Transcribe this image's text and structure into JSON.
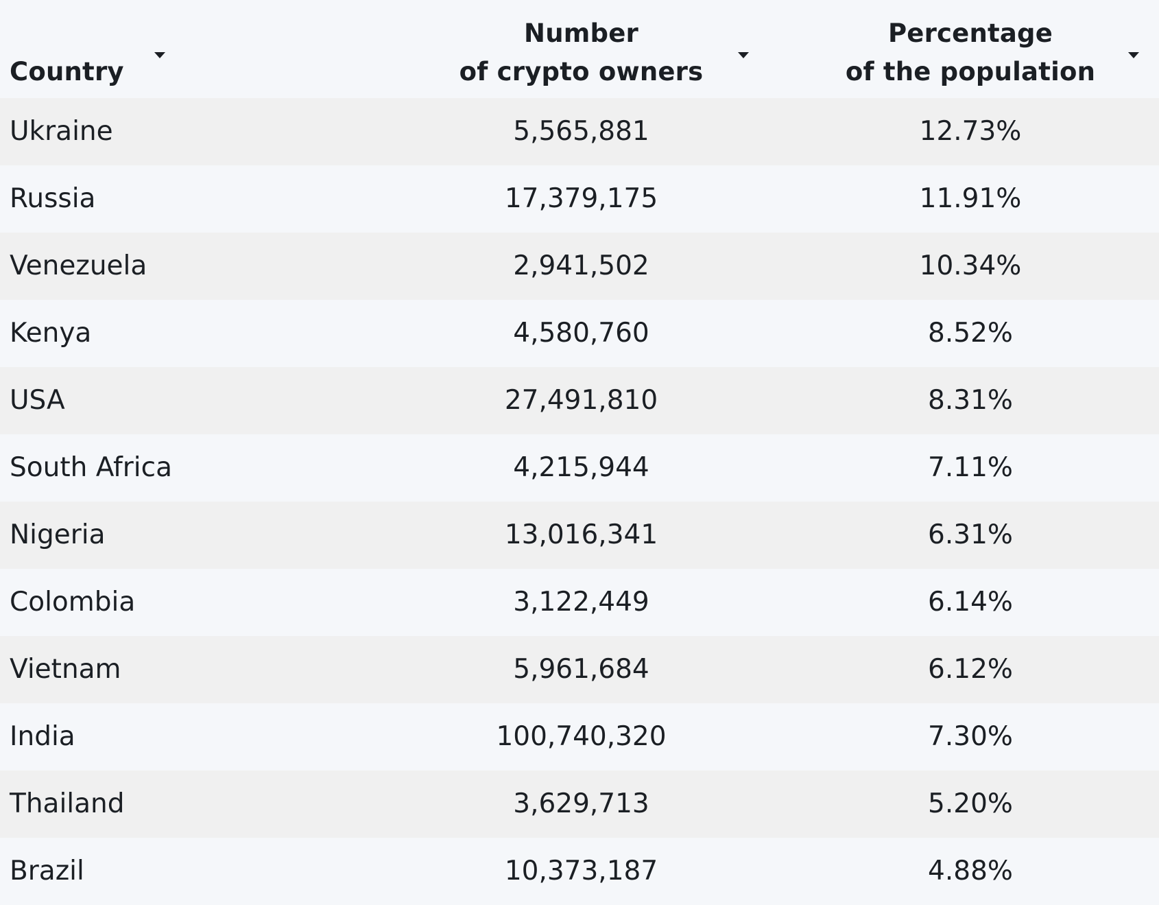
{
  "table": {
    "columns": [
      {
        "label": "Country",
        "label_lines": [
          "Country"
        ],
        "sort_icon": "caret-down-icon"
      },
      {
        "label": "Number of crypto owners",
        "label_lines": [
          "Number",
          "of crypto owners"
        ],
        "sort_icon": "caret-down-icon"
      },
      {
        "label": "Percentage of the population",
        "label_lines": [
          "Percentage",
          "of the population"
        ],
        "sort_icon": "caret-down-icon"
      }
    ],
    "rows": [
      {
        "country": "Ukraine",
        "owners": "5,565,881",
        "percent": "12.73%"
      },
      {
        "country": "Russia",
        "owners": "17,379,175",
        "percent": "11.91%"
      },
      {
        "country": "Venezuela",
        "owners": "2,941,502",
        "percent": "10.34%"
      },
      {
        "country": "Kenya",
        "owners": "4,580,760",
        "percent": "8.52%"
      },
      {
        "country": "USA",
        "owners": "27,491,810",
        "percent": "8.31%"
      },
      {
        "country": "South Africa",
        "owners": "4,215,944",
        "percent": "7.11%"
      },
      {
        "country": "Nigeria",
        "owners": "13,016,341",
        "percent": "6.31%"
      },
      {
        "country": "Colombia",
        "owners": "3,122,449",
        "percent": "6.14%"
      },
      {
        "country": "Vietnam",
        "owners": "5,961,684",
        "percent": "6.12%"
      },
      {
        "country": "India",
        "owners": "100,740,320",
        "percent": "7.30%"
      },
      {
        "country": "Thailand",
        "owners": "3,629,713",
        "percent": "5.20%"
      },
      {
        "country": "Brazil",
        "owners": "10,373,187",
        "percent": "4.88%"
      }
    ]
  },
  "colors": {
    "background": "#f5f7fa",
    "row_stripe": "#f0f0f0",
    "text": "#1b1f24"
  }
}
